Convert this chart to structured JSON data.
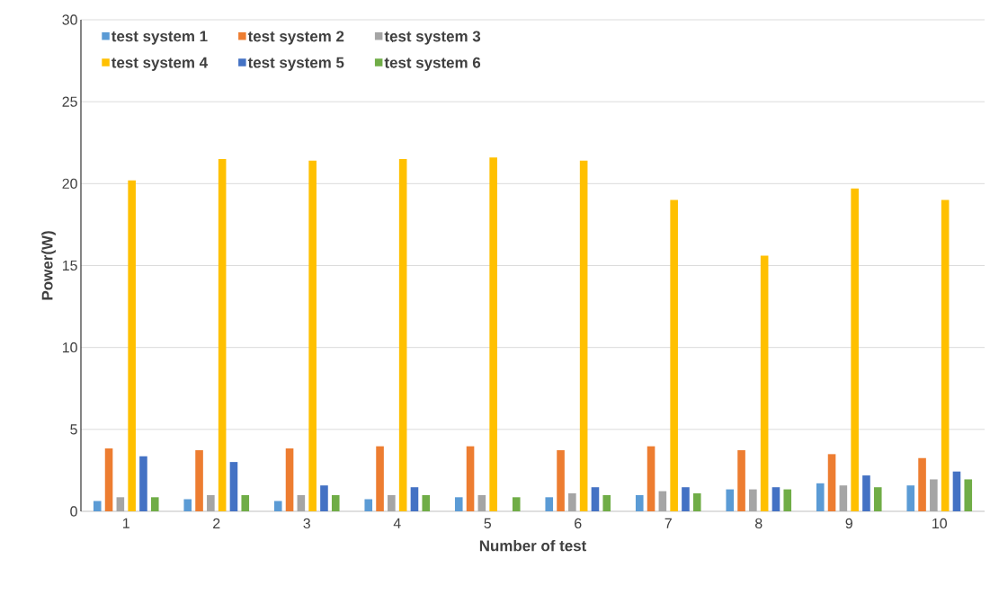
{
  "chart_data": {
    "type": "bar",
    "xlabel": "Number of test",
    "ylabel": "Power(W)",
    "categories": [
      "1",
      "2",
      "3",
      "4",
      "5",
      "6",
      "7",
      "8",
      "9",
      "10"
    ],
    "series": [
      {
        "name": "test system 1",
        "color": "#5b9bd5",
        "values": [
          0.63,
          0.74,
          0.63,
          0.74,
          0.86,
          0.86,
          0.99,
          1.34,
          1.71,
          1.58
        ]
      },
      {
        "name": "test system 2",
        "color": "#ed7d31",
        "values": [
          3.84,
          3.73,
          3.84,
          3.97,
          3.97,
          3.73,
          3.97,
          3.73,
          3.49,
          3.25
        ]
      },
      {
        "name": "test system 3",
        "color": "#a5a5a5",
        "values": [
          0.86,
          0.99,
          0.99,
          0.99,
          0.99,
          1.1,
          1.23,
          1.34,
          1.58,
          1.95
        ]
      },
      {
        "name": "test system 4",
        "color": "#ffc000",
        "values": [
          20.2,
          21.5,
          21.4,
          21.5,
          21.6,
          21.4,
          19.0,
          15.6,
          19.7,
          19.0
        ]
      },
      {
        "name": "test system 5",
        "color": "#4472c4",
        "values": [
          3.36,
          3.01,
          1.58,
          1.47,
          null,
          1.47,
          1.47,
          1.47,
          2.19,
          2.43
        ]
      },
      {
        "name": "test system 6",
        "color": "#70ad47",
        "values": [
          0.86,
          0.99,
          0.99,
          0.99,
          0.86,
          0.99,
          1.1,
          1.34,
          1.47,
          1.95
        ]
      }
    ],
    "ylim": [
      0,
      30
    ],
    "yticks": [
      0,
      5,
      10,
      15,
      20,
      25,
      30
    ],
    "grid": "y",
    "legend": "top left"
  }
}
